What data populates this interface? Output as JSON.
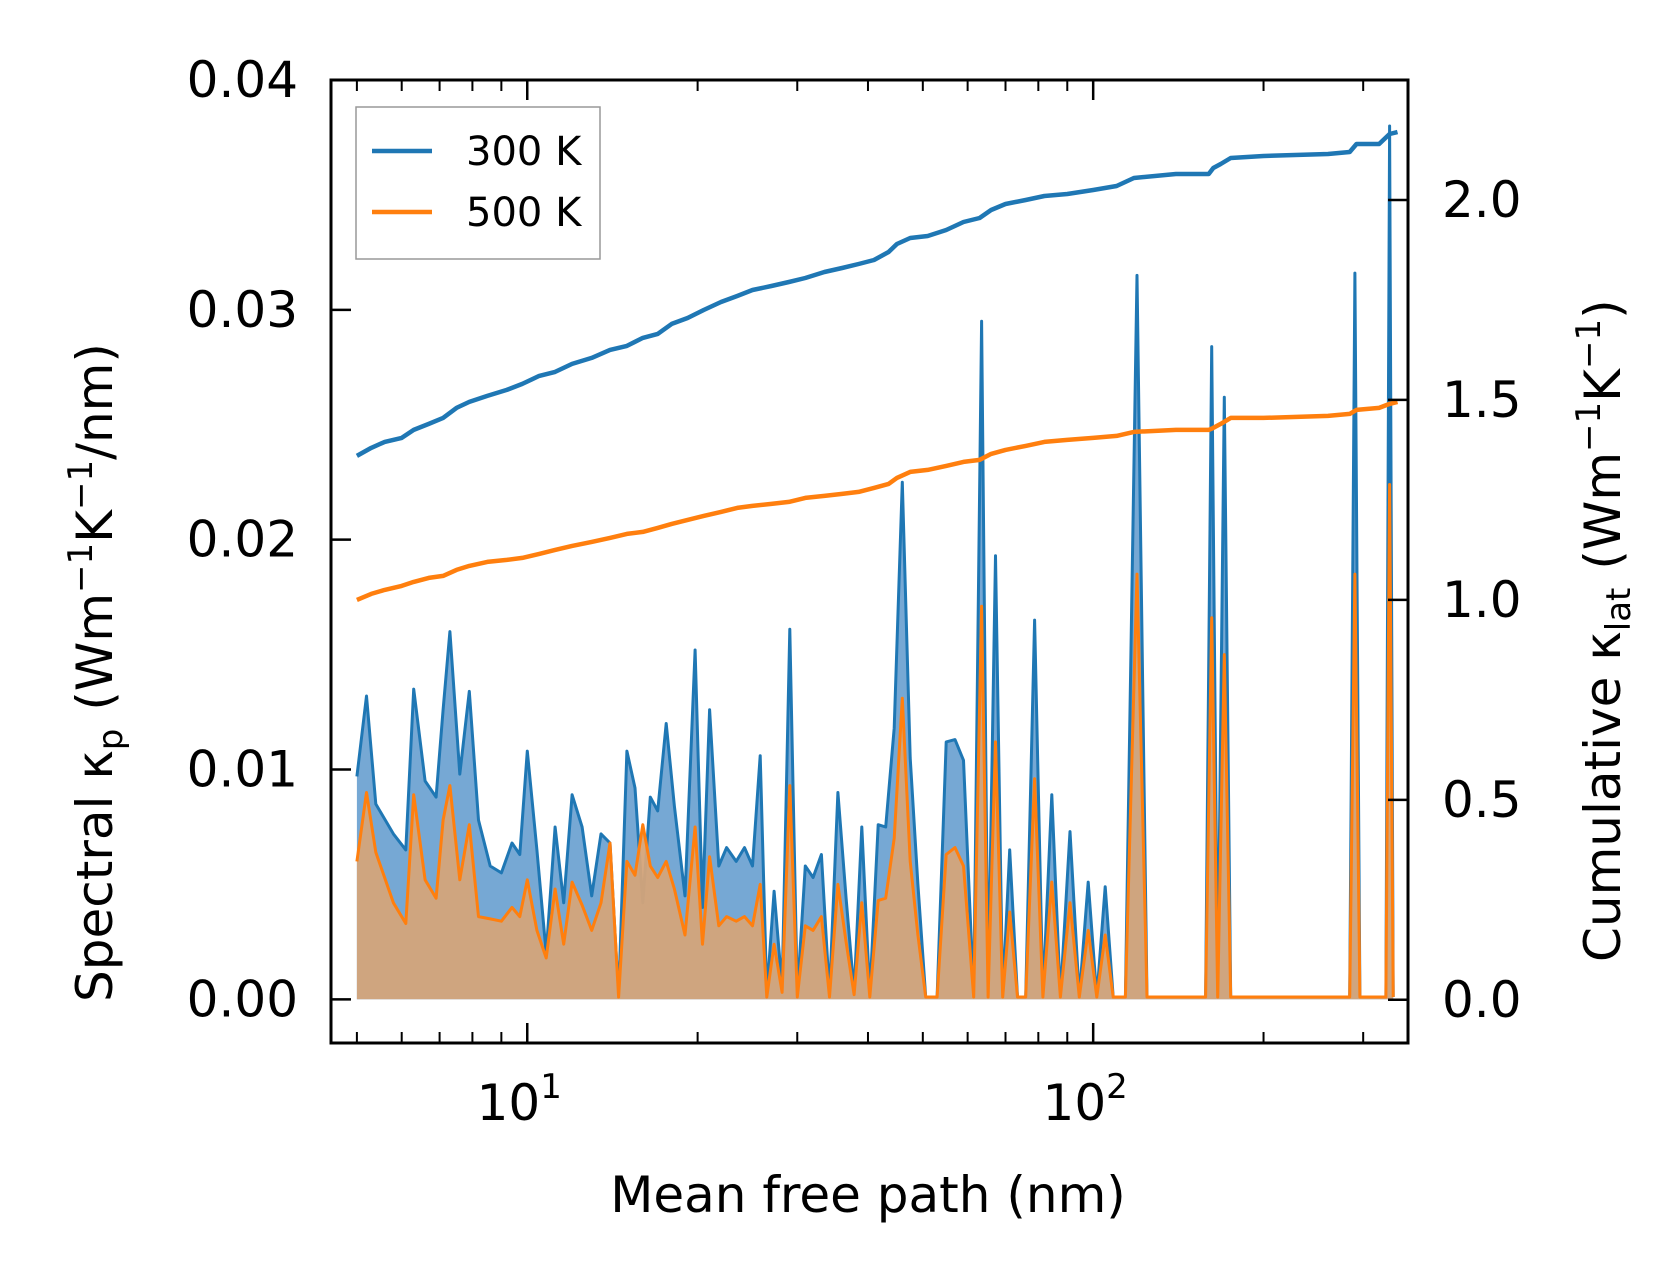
{
  "chart_data": {
    "type": "area+line",
    "xlabel": "Mean free path (nm)",
    "ylabel_left": "Spectral κ",
    "ylabel_left_sub": "p",
    "ylabel_left_units": "(Wm",
    "ylabel_right": "Cumulative κ",
    "ylabel_right_sub": "lat",
    "ylabel_right_units": "(Wm",
    "x_scale": "log",
    "xlim": [
      4.5,
      360
    ],
    "ylim_left": [
      -0.0019,
      0.04
    ],
    "ylim_right": [
      -0.108,
      2.3
    ],
    "x_ticks": [
      10,
      100
    ],
    "x_tick_labels": [
      {
        "base": "10",
        "exp": "1"
      },
      {
        "base": "10",
        "exp": "2"
      }
    ],
    "y_left_ticks": [
      0.0,
      0.01,
      0.02,
      0.03,
      0.04
    ],
    "y_left_tick_labels": [
      "0.00",
      "0.01",
      "0.02",
      "0.03",
      "0.04"
    ],
    "y_right_ticks": [
      0.0,
      0.5,
      1.0,
      1.5,
      2.0
    ],
    "y_right_tick_labels": [
      "0.0",
      "0.5",
      "1.0",
      "1.5",
      "2.0"
    ],
    "legend": {
      "placement": "top-left",
      "entries": [
        "300 K",
        "500 K"
      ]
    },
    "colors": {
      "300K": "#1f77b4",
      "500K": "#ff7f0e",
      "fill300": "#76a8d4",
      "fill500": "#d4a47a"
    },
    "spectral_300K": [
      [
        5.0,
        0.0097
      ],
      [
        5.2,
        0.0132
      ],
      [
        5.4,
        0.0085
      ],
      [
        5.8,
        0.0072
      ],
      [
        6.1,
        0.0065
      ],
      [
        6.3,
        0.0135
      ],
      [
        6.6,
        0.0095
      ],
      [
        6.9,
        0.0088
      ],
      [
        7.1,
        0.0126
      ],
      [
        7.3,
        0.016
      ],
      [
        7.6,
        0.0098
      ],
      [
        7.9,
        0.0134
      ],
      [
        8.2,
        0.0078
      ],
      [
        8.6,
        0.0058
      ],
      [
        9.0,
        0.0055
      ],
      [
        9.4,
        0.0068
      ],
      [
        9.7,
        0.0063
      ],
      [
        10.0,
        0.0108
      ],
      [
        10.4,
        0.0065
      ],
      [
        10.8,
        0.002
      ],
      [
        11.2,
        0.0075
      ],
      [
        11.6,
        0.0042
      ],
      [
        12.0,
        0.0089
      ],
      [
        12.5,
        0.0075
      ],
      [
        13.0,
        0.0045
      ],
      [
        13.5,
        0.0072
      ],
      [
        14.0,
        0.0068
      ],
      [
        14.5,
        0.0001
      ],
      [
        15.0,
        0.0108
      ],
      [
        15.5,
        0.0092
      ],
      [
        16.0,
        0.0042
      ],
      [
        16.5,
        0.0088
      ],
      [
        17.0,
        0.0082
      ],
      [
        17.6,
        0.012
      ],
      [
        18.2,
        0.0084
      ],
      [
        19.0,
        0.0045
      ],
      [
        19.8,
        0.0152
      ],
      [
        20.4,
        0.004
      ],
      [
        21.0,
        0.0126
      ],
      [
        21.8,
        0.0058
      ],
      [
        22.5,
        0.0066
      ],
      [
        23.4,
        0.006
      ],
      [
        24.2,
        0.0066
      ],
      [
        25.0,
        0.0058
      ],
      [
        25.8,
        0.0106
      ],
      [
        26.5,
        0.0002
      ],
      [
        27.3,
        0.0047
      ],
      [
        28.2,
        0.0005
      ],
      [
        29.1,
        0.0161
      ],
      [
        30.0,
        0.0002
      ],
      [
        31.0,
        0.0058
      ],
      [
        32.0,
        0.0053
      ],
      [
        33.1,
        0.0063
      ],
      [
        34.2,
        0.0002
      ],
      [
        35.4,
        0.009
      ],
      [
        36.6,
        0.0044
      ],
      [
        37.8,
        0.0003
      ],
      [
        39.0,
        0.0075
      ],
      [
        40.3,
        0.0002
      ],
      [
        41.7,
        0.0076
      ],
      [
        43.0,
        0.0075
      ],
      [
        44.5,
        0.0118
      ],
      [
        46.0,
        0.0225
      ],
      [
        47.5,
        0.0105
      ],
      [
        49.0,
        0.005
      ],
      [
        50.6,
        0.0001
      ],
      [
        53.0,
        0.0001
      ],
      [
        55.0,
        0.0112
      ],
      [
        57.0,
        0.0113
      ],
      [
        59.0,
        0.0104
      ],
      [
        61.5,
        0.0001
      ],
      [
        63.5,
        0.0295
      ],
      [
        65.2,
        0.0001
      ],
      [
        67.2,
        0.0193
      ],
      [
        69.2,
        0.0001
      ],
      [
        71.2,
        0.0065
      ],
      [
        73.5,
        0.0001
      ],
      [
        76.0,
        0.0001
      ],
      [
        78.8,
        0.0165
      ],
      [
        81.5,
        0.0001
      ],
      [
        84.5,
        0.0089
      ],
      [
        87.5,
        0.0001
      ],
      [
        91.0,
        0.0073
      ],
      [
        94.5,
        0.0001
      ],
      [
        98.0,
        0.0051
      ],
      [
        101.5,
        0.0001
      ],
      [
        105.0,
        0.0049
      ],
      [
        108.5,
        0.0001
      ],
      [
        114.0,
        0.0001
      ],
      [
        119.5,
        0.0315
      ],
      [
        124.5,
        0.0001
      ],
      [
        135.0,
        0.0001
      ],
      [
        150.0,
        0.0001
      ],
      [
        158.0,
        0.0001
      ],
      [
        162.0,
        0.0284
      ],
      [
        166.0,
        0.0001
      ],
      [
        170.5,
        0.0262
      ],
      [
        175.0,
        0.0001
      ],
      [
        200.0,
        0.0001
      ],
      [
        260.0,
        0.0001
      ],
      [
        284.0,
        0.0001
      ],
      [
        290.0,
        0.0316
      ],
      [
        296.0,
        0.0001
      ],
      [
        320.0,
        0.0001
      ],
      [
        329.0,
        0.0001
      ],
      [
        334.0,
        0.038
      ],
      [
        339.0,
        0.0001
      ]
    ],
    "spectral_500K": [
      [
        5.0,
        0.006
      ],
      [
        5.2,
        0.009
      ],
      [
        5.4,
        0.0064
      ],
      [
        5.8,
        0.0042
      ],
      [
        6.1,
        0.0033
      ],
      [
        6.3,
        0.0089
      ],
      [
        6.6,
        0.0052
      ],
      [
        6.9,
        0.0044
      ],
      [
        7.1,
        0.0078
      ],
      [
        7.3,
        0.0093
      ],
      [
        7.6,
        0.0052
      ],
      [
        7.9,
        0.0076
      ],
      [
        8.2,
        0.0036
      ],
      [
        8.6,
        0.0035
      ],
      [
        9.0,
        0.0034
      ],
      [
        9.4,
        0.004
      ],
      [
        9.7,
        0.0036
      ],
      [
        10.0,
        0.0052
      ],
      [
        10.4,
        0.003
      ],
      [
        10.8,
        0.0018
      ],
      [
        11.2,
        0.0048
      ],
      [
        11.6,
        0.0024
      ],
      [
        12.0,
        0.0051
      ],
      [
        12.5,
        0.0041
      ],
      [
        13.0,
        0.003
      ],
      [
        13.5,
        0.0042
      ],
      [
        14.0,
        0.0068
      ],
      [
        14.5,
        0.0001
      ],
      [
        15.0,
        0.006
      ],
      [
        15.5,
        0.0054
      ],
      [
        16.0,
        0.0076
      ],
      [
        16.5,
        0.0058
      ],
      [
        17.0,
        0.0053
      ],
      [
        17.6,
        0.006
      ],
      [
        18.2,
        0.0048
      ],
      [
        19.0,
        0.0028
      ],
      [
        19.8,
        0.0075
      ],
      [
        20.4,
        0.0024
      ],
      [
        21.0,
        0.0062
      ],
      [
        21.8,
        0.0032
      ],
      [
        22.5,
        0.0036
      ],
      [
        23.4,
        0.0034
      ],
      [
        24.2,
        0.0036
      ],
      [
        25.0,
        0.0032
      ],
      [
        25.8,
        0.005
      ],
      [
        26.5,
        0.0001
      ],
      [
        27.3,
        0.0024
      ],
      [
        28.2,
        0.0003
      ],
      [
        29.1,
        0.0093
      ],
      [
        30.0,
        0.0001
      ],
      [
        31.0,
        0.0032
      ],
      [
        32.0,
        0.003
      ],
      [
        33.1,
        0.0036
      ],
      [
        34.2,
        0.0001
      ],
      [
        35.4,
        0.005
      ],
      [
        36.6,
        0.0025
      ],
      [
        37.8,
        0.0002
      ],
      [
        39.0,
        0.0042
      ],
      [
        40.3,
        0.0001
      ],
      [
        41.7,
        0.0043
      ],
      [
        43.0,
        0.0044
      ],
      [
        44.5,
        0.007
      ],
      [
        46.0,
        0.0131
      ],
      [
        47.5,
        0.006
      ],
      [
        49.0,
        0.0028
      ],
      [
        50.6,
        0.0001
      ],
      [
        53.0,
        0.0001
      ],
      [
        55.0,
        0.0063
      ],
      [
        57.0,
        0.0066
      ],
      [
        59.0,
        0.0058
      ],
      [
        61.5,
        0.0001
      ],
      [
        63.5,
        0.0171
      ],
      [
        65.2,
        0.0001
      ],
      [
        67.2,
        0.0112
      ],
      [
        69.2,
        0.0001
      ],
      [
        71.2,
        0.0038
      ],
      [
        73.5,
        0.0001
      ],
      [
        76.0,
        0.0001
      ],
      [
        78.8,
        0.0096
      ],
      [
        81.5,
        0.0001
      ],
      [
        84.5,
        0.0051
      ],
      [
        87.5,
        0.0001
      ],
      [
        91.0,
        0.0042
      ],
      [
        94.5,
        0.0001
      ],
      [
        98.0,
        0.003
      ],
      [
        101.5,
        0.0001
      ],
      [
        105.0,
        0.0028
      ],
      [
        108.5,
        0.0001
      ],
      [
        114.0,
        0.0001
      ],
      [
        119.5,
        0.0185
      ],
      [
        124.5,
        0.0001
      ],
      [
        135.0,
        0.0001
      ],
      [
        150.0,
        0.0001
      ],
      [
        158.0,
        0.0001
      ],
      [
        162.0,
        0.0166
      ],
      [
        166.0,
        0.0001
      ],
      [
        170.5,
        0.015
      ],
      [
        175.0,
        0.0001
      ],
      [
        200.0,
        0.0001
      ],
      [
        260.0,
        0.0001
      ],
      [
        284.0,
        0.0001
      ],
      [
        290.0,
        0.0185
      ],
      [
        296.0,
        0.0001
      ],
      [
        320.0,
        0.0001
      ],
      [
        329.0,
        0.0001
      ],
      [
        334.0,
        0.0224
      ],
      [
        339.0,
        0.0001
      ]
    ],
    "cumulative_300K": [
      [
        5.0,
        1.36
      ],
      [
        5.3,
        1.38
      ],
      [
        5.6,
        1.395
      ],
      [
        6.0,
        1.405
      ],
      [
        6.3,
        1.425
      ],
      [
        6.7,
        1.44
      ],
      [
        7.1,
        1.455
      ],
      [
        7.5,
        1.48
      ],
      [
        7.9,
        1.495
      ],
      [
        8.5,
        1.51
      ],
      [
        9.2,
        1.525
      ],
      [
        9.8,
        1.54
      ],
      [
        10.5,
        1.56
      ],
      [
        11.2,
        1.57
      ],
      [
        12.0,
        1.59
      ],
      [
        13.0,
        1.605
      ],
      [
        14.0,
        1.625
      ],
      [
        15.0,
        1.635
      ],
      [
        16.0,
        1.655
      ],
      [
        17.0,
        1.665
      ],
      [
        18.0,
        1.69
      ],
      [
        19.2,
        1.705
      ],
      [
        20.5,
        1.725
      ],
      [
        22.0,
        1.745
      ],
      [
        23.5,
        1.76
      ],
      [
        25.0,
        1.775
      ],
      [
        27.0,
        1.785
      ],
      [
        29.0,
        1.795
      ],
      [
        31.0,
        1.805
      ],
      [
        33.5,
        1.82
      ],
      [
        36.0,
        1.83
      ],
      [
        38.5,
        1.84
      ],
      [
        41.0,
        1.85
      ],
      [
        43.5,
        1.87
      ],
      [
        45.0,
        1.89
      ],
      [
        47.5,
        1.905
      ],
      [
        51.0,
        1.91
      ],
      [
        55.0,
        1.925
      ],
      [
        59.0,
        1.945
      ],
      [
        63.0,
        1.955
      ],
      [
        66.0,
        1.975
      ],
      [
        70.0,
        1.99
      ],
      [
        76.0,
        2.0
      ],
      [
        82.0,
        2.01
      ],
      [
        90.0,
        2.015
      ],
      [
        100.0,
        2.025
      ],
      [
        110.0,
        2.035
      ],
      [
        118.0,
        2.055
      ],
      [
        140.0,
        2.065
      ],
      [
        160.0,
        2.065
      ],
      [
        163.0,
        2.08
      ],
      [
        168.0,
        2.09
      ],
      [
        175.0,
        2.105
      ],
      [
        200.0,
        2.11
      ],
      [
        260.0,
        2.115
      ],
      [
        284.0,
        2.12
      ],
      [
        292.0,
        2.14
      ],
      [
        320.0,
        2.14
      ],
      [
        334.0,
        2.165
      ],
      [
        345.0,
        2.17
      ]
    ],
    "cumulative_500K": [
      [
        5.0,
        1.0
      ],
      [
        5.3,
        1.015
      ],
      [
        5.6,
        1.025
      ],
      [
        6.0,
        1.035
      ],
      [
        6.3,
        1.045
      ],
      [
        6.7,
        1.055
      ],
      [
        7.1,
        1.06
      ],
      [
        7.5,
        1.075
      ],
      [
        7.9,
        1.085
      ],
      [
        8.5,
        1.095
      ],
      [
        9.2,
        1.1
      ],
      [
        9.8,
        1.105
      ],
      [
        10.5,
        1.115
      ],
      [
        11.2,
        1.125
      ],
      [
        12.0,
        1.135
      ],
      [
        13.0,
        1.145
      ],
      [
        14.0,
        1.155
      ],
      [
        15.0,
        1.165
      ],
      [
        16.0,
        1.17
      ],
      [
        17.0,
        1.18
      ],
      [
        18.0,
        1.19
      ],
      [
        19.2,
        1.2
      ],
      [
        20.5,
        1.21
      ],
      [
        22.0,
        1.22
      ],
      [
        23.5,
        1.23
      ],
      [
        25.0,
        1.235
      ],
      [
        27.0,
        1.24
      ],
      [
        29.0,
        1.245
      ],
      [
        31.0,
        1.255
      ],
      [
        33.5,
        1.26
      ],
      [
        36.0,
        1.265
      ],
      [
        38.5,
        1.27
      ],
      [
        41.0,
        1.28
      ],
      [
        43.5,
        1.29
      ],
      [
        45.0,
        1.305
      ],
      [
        47.5,
        1.32
      ],
      [
        51.0,
        1.325
      ],
      [
        55.0,
        1.335
      ],
      [
        59.0,
        1.345
      ],
      [
        63.0,
        1.35
      ],
      [
        66.0,
        1.365
      ],
      [
        70.0,
        1.375
      ],
      [
        76.0,
        1.385
      ],
      [
        82.0,
        1.395
      ],
      [
        90.0,
        1.4
      ],
      [
        100.0,
        1.405
      ],
      [
        110.0,
        1.41
      ],
      [
        118.0,
        1.42
      ],
      [
        140.0,
        1.425
      ],
      [
        160.0,
        1.425
      ],
      [
        163.0,
        1.43
      ],
      [
        168.0,
        1.44
      ],
      [
        175.0,
        1.455
      ],
      [
        200.0,
        1.455
      ],
      [
        260.0,
        1.46
      ],
      [
        284.0,
        1.465
      ],
      [
        292.0,
        1.475
      ],
      [
        320.0,
        1.48
      ],
      [
        334.0,
        1.49
      ],
      [
        345.0,
        1.495
      ]
    ]
  }
}
